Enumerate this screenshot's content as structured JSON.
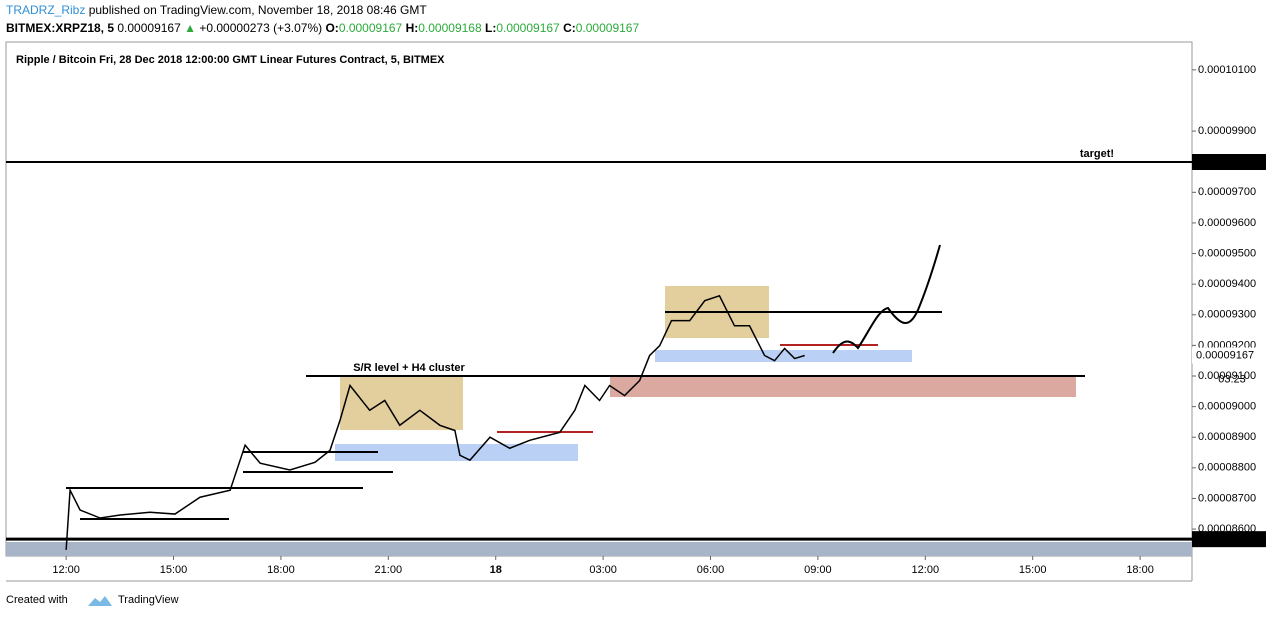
{
  "header": {
    "author": "TRADRZ_Ribz",
    "published": "published on TradingView.com, November 18, 2018 08:46 GMT",
    "symbol": "BITMEX:XRPZ18, 5",
    "last": "0.00009167",
    "change": "+0.00000273 (+3.07%)",
    "o_label": "O:",
    "o": "0.00009167",
    "h_label": "H:",
    "h": "0.00009168",
    "l_label": "L:",
    "l": "0.00009167",
    "c_label": "C:",
    "c": "0.00009167"
  },
  "footer": {
    "created": "Created with",
    "brand": "TradingView"
  },
  "chart_data": {
    "type": "line",
    "title": "Ripple / Bitcoin Fri, 28 Dec 2018 12:00:00 GMT Linear Futures Contract, 5, BITMEX",
    "annotations": [
      "S/R level + H4 cluster",
      "target!"
    ],
    "countdown": "03:23",
    "x": [
      0,
      0.11,
      0.39,
      0.95,
      1.51,
      2.34,
      3.04,
      3.74,
      4.58,
      4.86,
      5,
      5.42,
      6.25,
      6.95,
      7.37,
      7.65,
      7.93,
      8.48,
      8.9,
      9.32,
      9.88,
      10.44,
      10.86,
      11,
      11.28,
      11.84,
      12.39,
      12.95,
      13.79,
      14.21,
      14.49,
      14.9,
      15.18,
      15.6,
      16.02,
      16.3,
      16.58,
      16.91,
      17.42,
      17.84,
      18.25,
      18.67,
      19.09,
      19.51,
      19.79,
      20.07,
      20.35,
      20.63
    ],
    "series": [
      {
        "name": "XRPZ18",
        "color": "#000000",
        "values": [
          8.532e-05,
          8.727e-05,
          8.662e-05,
          8.636e-05,
          8.646e-05,
          8.655e-05,
          8.649e-05,
          8.704e-05,
          8.727e-05,
          8.825e-05,
          8.874e-05,
          8.815e-05,
          8.793e-05,
          8.818e-05,
          8.857e-05,
          8.955e-05,
          9.069e-05,
          8.988e-05,
          9.02e-05,
          8.939e-05,
          8.988e-05,
          8.939e-05,
          8.922e-05,
          8.841e-05,
          8.825e-05,
          8.9e-05,
          8.864e-05,
          8.89e-05,
          8.916e-05,
          8.988e-05,
          9.069e-05,
          9.02e-05,
          9.069e-05,
          9.036e-05,
          9.085e-05,
          9.167e-05,
          9.199e-05,
          9.281e-05,
          9.281e-05,
          9.346e-05,
          9.362e-05,
          9.264e-05,
          9.264e-05,
          9.167e-05,
          9.15e-05,
          9.19e-05,
          9.157e-05,
          9.167e-05
        ]
      }
    ],
    "price_lines": [
      {
        "value": 9.799e-05,
        "label": "0.00009799"
      },
      {
        "value": 9.167e-05,
        "label": "0.00009167"
      },
      {
        "value": 8.567e-05,
        "label": "0.00008567"
      }
    ],
    "xlim": [
      -1.68,
      31.45
    ],
    "xticks": [
      {
        "value": 0,
        "label": "12:00"
      },
      {
        "value": 3,
        "label": "15:00"
      },
      {
        "value": 6,
        "label": "18:00"
      },
      {
        "value": 9,
        "label": "21:00"
      },
      {
        "value": 12,
        "label": "18"
      },
      {
        "value": 15,
        "label": "03:00"
      },
      {
        "value": 18,
        "label": "06:00"
      },
      {
        "value": 21,
        "label": "09:00"
      },
      {
        "value": 24,
        "label": "12:00"
      },
      {
        "value": 27,
        "label": "15:00"
      },
      {
        "value": 30,
        "label": "18:00"
      }
    ],
    "ylim": [
      8.512e-05,
      0.00010191
    ],
    "yticks": [
      {
        "value": 8.6e-05,
        "label": "0.00008600"
      },
      {
        "value": 8.7e-05,
        "label": "0.00008700"
      },
      {
        "value": 8.8e-05,
        "label": "0.00008800"
      },
      {
        "value": 8.9e-05,
        "label": "0.00008900"
      },
      {
        "value": 9e-05,
        "label": "0.00009000"
      },
      {
        "value": 9.1e-05,
        "label": "0.00009100"
      },
      {
        "value": 9.2e-05,
        "label": "0.00009200"
      },
      {
        "value": 9.3e-05,
        "label": "0.00009300"
      },
      {
        "value": 9.4e-05,
        "label": "0.00009400"
      },
      {
        "value": 9.5e-05,
        "label": "0.00009500"
      },
      {
        "value": 9.6e-05,
        "label": "0.00009600"
      },
      {
        "value": 9.7e-05,
        "label": "0.00009700"
      },
      {
        "value": 9.9e-05,
        "label": "0.00009900"
      },
      {
        "value": 0.000101,
        "label": "0.00010100"
      }
    ]
  }
}
